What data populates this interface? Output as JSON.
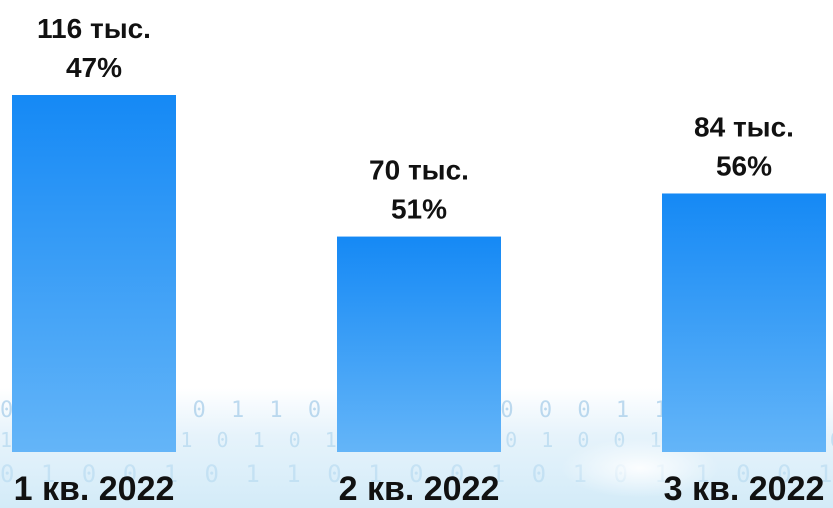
{
  "chart_data": {
    "type": "bar",
    "categories": [
      "1 кв. 2022",
      "2 кв. 2022",
      "3 кв. 2022"
    ],
    "values": [
      116,
      70,
      84
    ],
    "value_labels": [
      "116 тыс.",
      "70 тыс.",
      "84 тыс."
    ],
    "percent_labels": [
      "47%",
      "51%",
      "56%"
    ],
    "ylim": [
      0,
      116
    ],
    "grid": false,
    "bar_color_top": "#1589f5",
    "bar_color_bottom": "#64b5f8",
    "label_color": "#111111"
  },
  "background": {
    "binary_rows": [
      "0 1 1 0 1 0 1 1 0 0 1 0 1 0 0 0 1 1 0 1 0 1 0 0 1 1 0 1 0",
      "1 0 0 1 1 1 0 1 0 1 0 0 1 1 0 1 0 0 1 1 0 1 0 0 1 0 1 1 0",
      "0 1 0 0 1 0 1 1 0 1 0 0 1 0 1 0 1 1 0 0 1 0 1 0 0 1 0 1 1"
    ]
  }
}
